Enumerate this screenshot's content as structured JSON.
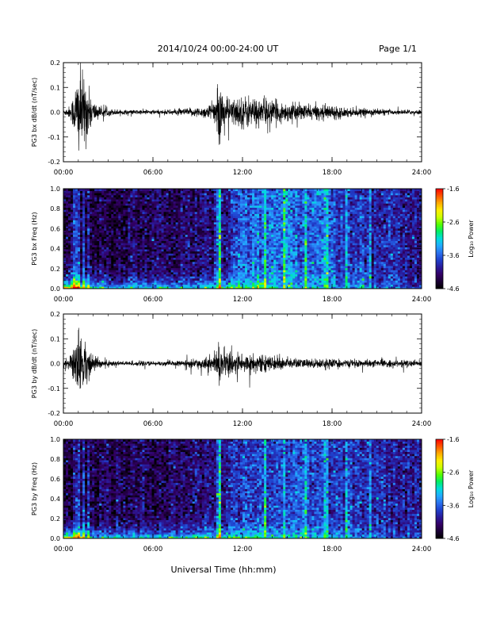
{
  "header": {
    "date_range": "2014/10/24  00:00-24:00 UT",
    "page": "Page 1/1"
  },
  "xlabel": "Universal Time (hh:mm)",
  "x_ticks": [
    "00:00",
    "06:00",
    "12:00",
    "18:00",
    "24:00"
  ],
  "colors": {
    "waveform": "#000000",
    "colormap": [
      "#000000",
      "#1a0033",
      "#330066",
      "#2a1a99",
      "#1f40cc",
      "#2a70ee",
      "#22aaff",
      "#00dddd",
      "#00ee66",
      "#55ff00",
      "#ccff00",
      "#ffee00",
      "#ffaa00",
      "#ff5500",
      "#ff0000"
    ]
  },
  "colorbar": {
    "label": "Log₁₀ Power",
    "ticks": [
      "-1.6",
      "-2.6",
      "-3.6",
      "-4.6"
    ],
    "range": [
      -4.6,
      -1.6
    ]
  },
  "panels": {
    "bx_wave": {
      "ylabel": "PG3 bx dB/dt (nT/sec)",
      "y_ticks": [
        "0.2",
        "0.1",
        "0.0",
        "-0.1",
        "-0.2"
      ]
    },
    "bx_spec": {
      "ylabel": "PG3 bx Freq (Hz)",
      "y_ticks": [
        "1.0",
        "0.8",
        "0.6",
        "0.4",
        "0.2",
        "0.0"
      ]
    },
    "by_wave": {
      "ylabel": "PG3 by dB/dt (nT/sec)",
      "y_ticks": [
        "0.2",
        "0.1",
        "0.0",
        "-0.1",
        "-0.2"
      ]
    },
    "by_spec": {
      "ylabel": "PG3 by Freq (Hz)",
      "y_ticks": [
        "1.0",
        "0.8",
        "0.6",
        "0.4",
        "0.2",
        "0.0"
      ]
    }
  },
  "chart_data": [
    {
      "type": "line",
      "panel": "bx_wave",
      "x_unit": "hours UT",
      "xlim": [
        0,
        24
      ],
      "ylim": [
        -0.2,
        0.2
      ],
      "series": [
        {
          "x": [
            0,
            0.5,
            0.8,
            1.0,
            1.2,
            1.5,
            1.8,
            2.0,
            2.5,
            3.0,
            4.0,
            5.0,
            6.0,
            7.0,
            8.0,
            9.0,
            9.5,
            10.0,
            10.3,
            10.5,
            10.7,
            11.0,
            11.5,
            12.0,
            12.5,
            13.0,
            13.5,
            14.0,
            15.0,
            16.0,
            17.0,
            18.0,
            19.0,
            20.0,
            21.0,
            22.0,
            23.0,
            24.0
          ],
          "envelope": [
            0.01,
            0.03,
            0.12,
            0.2,
            0.17,
            0.14,
            0.08,
            0.05,
            0.02,
            0.015,
            0.01,
            0.01,
            0.01,
            0.01,
            0.015,
            0.02,
            0.025,
            0.04,
            0.07,
            0.15,
            0.08,
            0.06,
            0.06,
            0.07,
            0.07,
            0.06,
            0.06,
            0.05,
            0.04,
            0.035,
            0.03,
            0.03,
            0.02,
            0.015,
            0.015,
            0.01,
            0.01,
            0.01
          ]
        }
      ]
    },
    {
      "type": "heatmap",
      "panel": "bx_spec",
      "x_unit": "hours UT",
      "y_unit": "Hz",
      "xlim": [
        0,
        24
      ],
      "ylim": [
        0,
        1
      ],
      "zlim": [
        -4.6,
        -1.6
      ],
      "background_by_hour": [
        [
          0,
          -4.3
        ],
        [
          7,
          -4.2
        ],
        [
          11,
          -4.0
        ],
        [
          12,
          -3.6
        ],
        [
          15,
          -3.5
        ],
        [
          18,
          -3.7
        ],
        [
          21,
          -3.9
        ],
        [
          24,
          -4.0
        ]
      ],
      "low_freq_enhancement": [
        [
          0.5,
          -2.0
        ],
        [
          1.0,
          -1.8
        ],
        [
          2.0,
          -3.0
        ],
        [
          8.0,
          -3.0
        ],
        [
          10.5,
          -2.8
        ],
        [
          13.0,
          -2.6
        ],
        [
          15.0,
          -3.0
        ],
        [
          24.0,
          -3.8
        ]
      ],
      "vertical_streaks_hours": [
        0.8,
        1.0,
        1.3,
        1.7,
        10.4,
        10.5,
        13.5,
        14.8,
        16.2,
        17.6,
        19.0,
        20.5
      ]
    },
    {
      "type": "line",
      "panel": "by_wave",
      "x_unit": "hours UT",
      "xlim": [
        0,
        24
      ],
      "ylim": [
        -0.2,
        0.2
      ],
      "series": [
        {
          "x": [
            0,
            0.5,
            0.8,
            1.0,
            1.2,
            1.5,
            1.8,
            2.0,
            2.5,
            3.0,
            4.0,
            5.0,
            6.0,
            7.0,
            8.0,
            9.0,
            9.5,
            10.0,
            10.3,
            10.5,
            10.7,
            11.0,
            11.5,
            12.0,
            12.5,
            13.0,
            13.5,
            14.0,
            15.0,
            16.0,
            17.0,
            18.0,
            19.0,
            20.0,
            21.0,
            22.0,
            23.0,
            24.0
          ],
          "envelope": [
            0.015,
            0.04,
            0.1,
            0.13,
            0.12,
            0.09,
            0.05,
            0.035,
            0.02,
            0.015,
            0.01,
            0.01,
            0.01,
            0.01,
            0.012,
            0.02,
            0.025,
            0.035,
            0.06,
            0.09,
            0.06,
            0.05,
            0.045,
            0.045,
            0.04,
            0.035,
            0.035,
            0.03,
            0.025,
            0.02,
            0.02,
            0.02,
            0.015,
            0.015,
            0.015,
            0.015,
            0.015,
            0.015
          ]
        }
      ]
    },
    {
      "type": "heatmap",
      "panel": "by_spec",
      "x_unit": "hours UT",
      "y_unit": "Hz",
      "xlim": [
        0,
        24
      ],
      "ylim": [
        0,
        1
      ],
      "zlim": [
        -4.6,
        -1.6
      ],
      "background_by_hour": [
        [
          0,
          -4.3
        ],
        [
          7,
          -4.2
        ],
        [
          11,
          -4.0
        ],
        [
          12,
          -3.7
        ],
        [
          15,
          -3.7
        ],
        [
          18,
          -3.8
        ],
        [
          21,
          -3.9
        ],
        [
          24,
          -4.0
        ]
      ],
      "low_freq_enhancement": [
        [
          0.5,
          -2.2
        ],
        [
          1.0,
          -2.0
        ],
        [
          2.0,
          -3.0
        ],
        [
          8.0,
          -3.0
        ],
        [
          10.5,
          -2.8
        ],
        [
          13.0,
          -2.7
        ],
        [
          15.0,
          -3.0
        ],
        [
          24.0,
          -3.8
        ]
      ],
      "vertical_streaks_hours": [
        0.8,
        1.0,
        1.3,
        1.7,
        10.4,
        10.5,
        13.5,
        14.8,
        16.2,
        17.6,
        19.0,
        20.5
      ]
    }
  ]
}
